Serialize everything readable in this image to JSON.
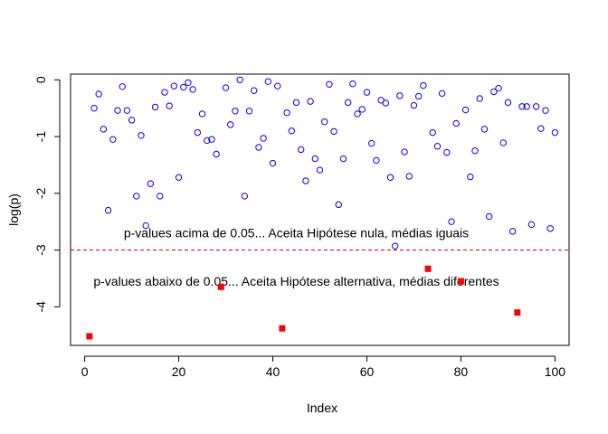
{
  "chart_data": {
    "type": "scatter",
    "xlabel": "Index",
    "ylabel": "log(p)",
    "xlim": [
      -3,
      103
    ],
    "ylim": [
      -4.68,
      0.1
    ],
    "x_ticks": [
      0,
      20,
      40,
      60,
      80,
      100
    ],
    "y_ticks": [
      0,
      -1,
      -2,
      -3,
      -4
    ],
    "x_tick_labels": [
      "0",
      "20",
      "40",
      "60",
      "80",
      "100"
    ],
    "y_tick_labels": [
      "0",
      "-1",
      "-2",
      "-3",
      "-4"
    ],
    "grid": false,
    "threshold": {
      "value": -3.0,
      "color": "#dd0000",
      "style": "dashed"
    },
    "annotations": [
      {
        "text": "p-values acima de 0.05... Aceita Hipótese nula, médias iguais",
        "x": 45,
        "y": -2.7
      },
      {
        "text": "p-values abaixo de 0.05... Aceita Hipótese alternativa, médias diferentes",
        "x": 45,
        "y": -3.55
      }
    ],
    "series": [
      {
        "marker": "open-circle",
        "color": "#0000ff",
        "x": [
          2,
          3,
          4,
          5,
          6,
          7,
          8,
          9,
          10,
          11,
          12,
          13,
          14,
          15,
          16,
          17,
          18,
          19,
          20,
          21,
          22,
          23,
          24,
          25,
          26,
          27,
          28,
          30,
          31,
          32,
          33,
          34,
          35,
          36,
          37,
          38,
          39,
          40,
          41,
          43,
          44,
          45,
          46,
          47,
          48,
          49,
          50,
          51,
          52,
          53,
          54,
          55,
          56,
          57,
          58,
          59,
          60,
          61,
          62,
          63,
          64,
          65,
          66,
          67,
          68,
          69,
          70,
          71,
          72,
          74,
          75,
          76,
          77,
          78,
          79,
          81,
          82,
          83,
          84,
          85,
          86,
          87,
          88,
          89,
          90,
          91,
          93,
          94,
          95,
          96,
          97,
          98,
          99,
          100
        ],
        "y": [
          -0.5,
          -0.25,
          -0.87,
          -2.3,
          -1.05,
          -0.54,
          -0.12,
          -0.54,
          -0.71,
          -2.05,
          -0.98,
          -2.57,
          -1.83,
          -0.48,
          -2.05,
          -0.22,
          -0.46,
          -0.11,
          -1.72,
          -0.13,
          -0.05,
          -0.17,
          -0.93,
          -0.6,
          -1.07,
          -1.05,
          -1.31,
          -0.14,
          -0.79,
          -0.55,
          0.0,
          -2.05,
          -0.55,
          -0.19,
          -1.19,
          -1.03,
          -0.03,
          -1.47,
          -0.11,
          -0.58,
          -0.9,
          -0.4,
          -1.23,
          -1.78,
          -0.38,
          -1.39,
          -1.59,
          -0.74,
          -0.08,
          -0.91,
          -2.2,
          -1.39,
          -0.4,
          -0.07,
          -0.6,
          -0.52,
          -0.22,
          -1.12,
          -1.42,
          -0.36,
          -0.41,
          -1.72,
          -2.93,
          -0.28,
          -1.27,
          -1.7,
          -0.45,
          -0.29,
          -0.1,
          -0.93,
          -1.17,
          -0.24,
          -1.28,
          -2.5,
          -0.77,
          -0.53,
          -1.71,
          -1.25,
          -0.33,
          -0.87,
          -2.41,
          -0.21,
          -0.15,
          -1.11,
          -0.4,
          -2.67,
          -0.47,
          -0.47,
          -2.55,
          -0.47,
          -0.86,
          -0.54,
          -2.62,
          -0.93
        ]
      },
      {
        "marker": "filled-square",
        "color": "#ff0000",
        "x": [
          1,
          29,
          42,
          73,
          80,
          92
        ],
        "y": [
          -4.52,
          -3.65,
          -4.38,
          -3.33,
          -3.55,
          -4.1
        ]
      }
    ]
  }
}
